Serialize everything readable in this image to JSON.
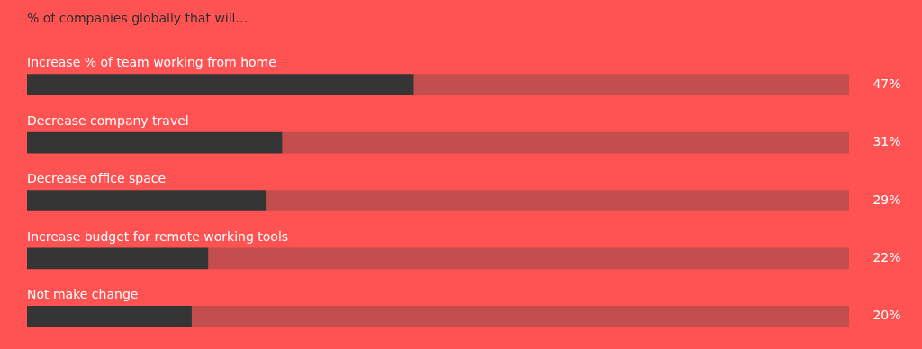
{
  "chart_data": {
    "type": "bar",
    "orientation": "horizontal",
    "stacked": true,
    "title": "% of companies globally that will...",
    "categories": [
      "Increase % of team working from home",
      "Decrease company travel",
      "Decrease office space",
      "Increase budget for remote working tools",
      "Not make change"
    ],
    "series": [
      {
        "color": "#353535",
        "values": [
          47,
          31,
          29,
          22,
          20
        ],
        "value_labels": [
          "47%",
          "31%",
          "29%",
          "22%",
          "20%"
        ]
      },
      {
        "color": "#c44d4d",
        "values": [
          53,
          69,
          71,
          78,
          80
        ]
      }
    ],
    "xlim": [
      0,
      100
    ]
  }
}
